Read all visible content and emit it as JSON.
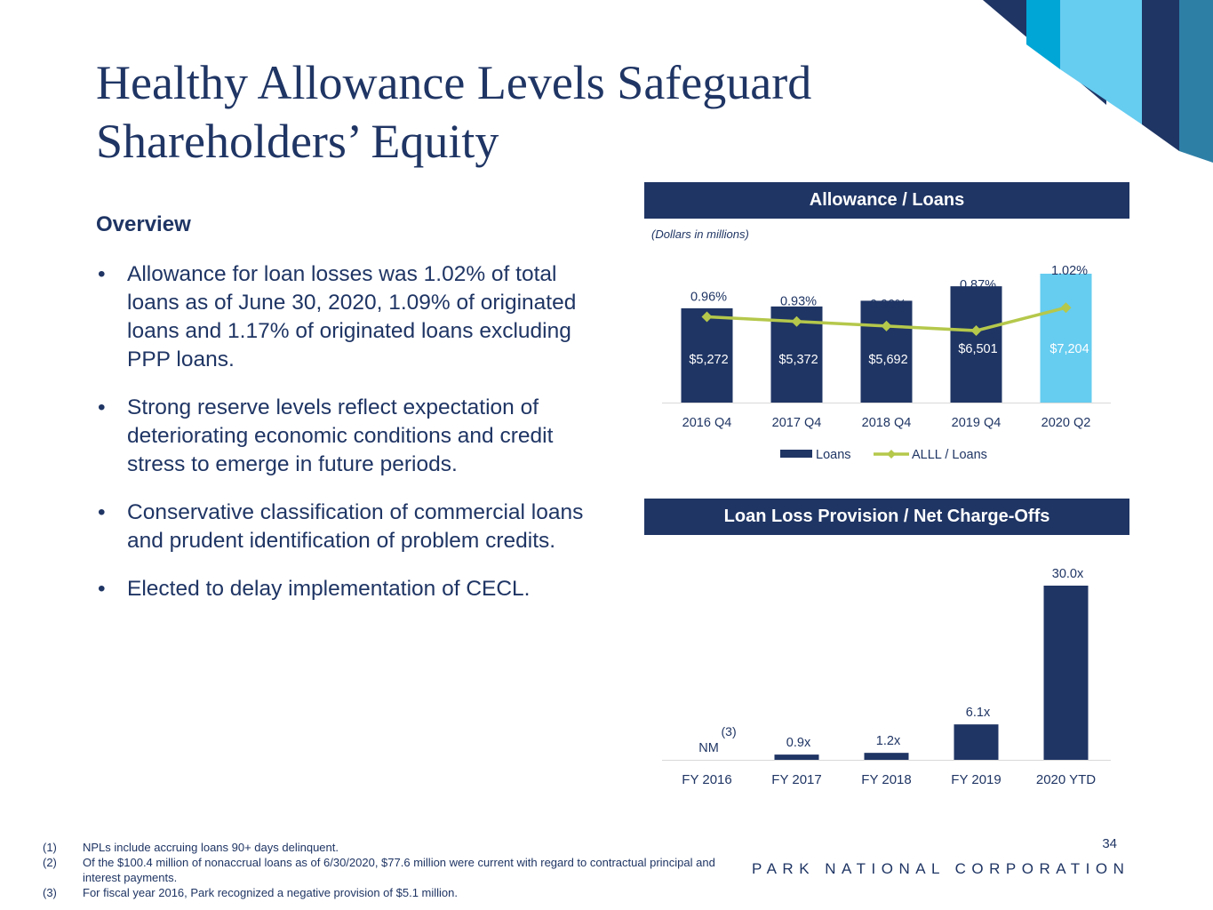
{
  "slide": {
    "title": "Healthy Allowance Levels Safeguard Shareholders’ Equity",
    "overview_heading": "Overview",
    "bullets": [
      "Allowance for loan losses was 1.02% of total loans as of June 30, 2020, 1.09% of originated loans and 1.17% of originated loans excluding PPP loans.",
      "Strong reserve levels reflect expectation of deteriorating economic conditions and credit stress to emerge in future periods.",
      "Conservative classification of commercial loans and prudent identification of problem credits.",
      "Elected to delay implementation of CECL."
    ],
    "page_number": "34",
    "company": "PARK NATIONAL CORPORATION",
    "footnotes": [
      {
        "num": "(1)",
        "text": "NPLs include accruing loans 90+ days delinquent."
      },
      {
        "num": "(2)",
        "text": "Of the $100.4 million of nonaccrual loans as of 6/30/2020, $77.6 million were current with regard to contractual principal and interest payments."
      },
      {
        "num": "(3)",
        "text": "For fiscal year 2016, Park recognized a negative provision of $5.1 million."
      }
    ],
    "colors": {
      "navy": "#1f3564",
      "light_blue": "#66ccf0",
      "green": "#b5c84b",
      "cyan": "#00a6d6"
    }
  },
  "panels": {
    "allowance": {
      "header": "Allowance / Loans",
      "subtitle": "(Dollars in millions)"
    },
    "provision": {
      "header": "Loan Loss Provision / Net Charge-Offs"
    }
  },
  "chart_data": [
    {
      "type": "bar",
      "title": "Allowance / Loans",
      "subtitle": "(Dollars in millions)",
      "categories": [
        "2016 Q4",
        "2017 Q4",
        "2018 Q4",
        "2019 Q4",
        "2020 Q2"
      ],
      "series": [
        {
          "name": "Loans",
          "type": "bar",
          "values": [
            5272,
            5372,
            5692,
            6501,
            7204
          ],
          "labels": [
            "$5,272",
            "$5,372",
            "$5,692",
            "$6,501",
            "$7,204"
          ]
        },
        {
          "name": "ALLL / Loans",
          "type": "line",
          "values": [
            0.96,
            0.93,
            0.9,
            0.87,
            1.02
          ],
          "labels": [
            "0.96%",
            "0.93%",
            "0.90%",
            "0.87%",
            "1.02%"
          ]
        }
      ],
      "ylim": [
        0,
        7700
      ],
      "y2lim": [
        0.4,
        1.3
      ],
      "legend": "bottom",
      "grid": false,
      "highlight_last": true
    },
    {
      "type": "bar",
      "title": "Loan Loss Provision / Net Charge-Offs",
      "categories": [
        "FY 2016",
        "FY 2017",
        "FY 2018",
        "FY 2019",
        "2020 YTD"
      ],
      "values": [
        0,
        0.9,
        1.2,
        6.1,
        30.0
      ],
      "labels": [
        "NM",
        "0.9x",
        "1.2x",
        "6.1x",
        "30.0x"
      ],
      "label_notes": [
        "(3)",
        "",
        "",
        "",
        ""
      ],
      "ylim": [
        0,
        30.0
      ],
      "grid": false
    }
  ]
}
